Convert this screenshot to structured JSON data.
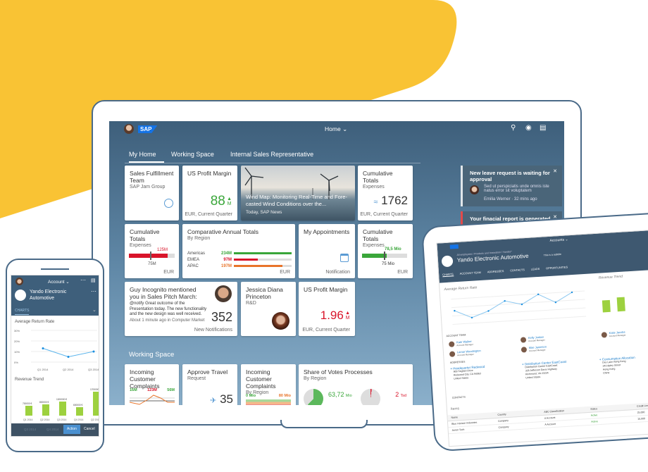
{
  "colors": {
    "brand_yellow": "#f9c334",
    "shell": "#3e5f7b",
    "positive": "#3aa63a",
    "negative": "#d9142a",
    "critical": "#e8742a",
    "accent": "#1a7cc9"
  },
  "shell": {
    "logo": "SAP",
    "title": "Home",
    "icons": [
      "search-icon",
      "copilot-icon",
      "notifications-icon"
    ]
  },
  "tabs": [
    {
      "label": "My Home",
      "active": true
    },
    {
      "label": "Working Space"
    },
    {
      "label": "Internal Sales Representative"
    }
  ],
  "tiles": {
    "sales_team": {
      "title": "Sales Fulfillment Team",
      "subtitle": "SAP Jam Group",
      "icon": "jam-icon"
    },
    "profit1": {
      "title": "US Profit Margin",
      "value": "88",
      "scale": "M",
      "footer": "EUR, Current Quarter",
      "trend": "up"
    },
    "news": {
      "title": "Wind Map: Monitoring Real-Time and Fore-casted Wind Conditions over the...",
      "footer": "Today, SAP News"
    },
    "cum1": {
      "title": "Cumulative Totals",
      "subtitle": "Expenses",
      "value": "1762",
      "footer": "EUR, Current Quarter",
      "icon": "trend-icon"
    },
    "cum2": {
      "title": "Cumulative Totals",
      "subtitle": "Expenses",
      "actual": "125M",
      "target": "75M",
      "footer": "EUR",
      "progress": 0.85
    },
    "comparative": {
      "title": "Comparative Annual Totals",
      "subtitle": "By Region",
      "footer": "EUR",
      "rows": [
        {
          "label": "Americas",
          "value": "234M",
          "fraction": 1.0,
          "color": "#3aa63a"
        },
        {
          "label": "EMEA",
          "value": "97M",
          "fraction": 0.41,
          "color": "#d9142a"
        },
        {
          "label": "APAC",
          "value": "197M",
          "fraction": 0.84,
          "color": "#e8742a"
        }
      ]
    },
    "appointments": {
      "title": "My Appointments",
      "footer": "Notification",
      "icon": "calendar-icon"
    },
    "cum3": {
      "title": "Cumulative Totals",
      "subtitle": "Expenses",
      "actual": "78,5 Mio",
      "target": "75 Mio",
      "footer": "EUR",
      "progress": 0.55
    },
    "mention": {
      "title": "Guy Incognito mentioned you in Sales Pitch March:",
      "text": "@notify Great outcome of the Presentation today. The new functionality and the new design was well received.",
      "meta": "About 1 minute ago in Computer Market",
      "value": "352",
      "footer": "New Notifications"
    },
    "contact": {
      "title": "Jessica Diana Princeton",
      "subtitle": "R&D"
    },
    "profit2": {
      "title": "US Profit Margin",
      "value": "1.96",
      "scale": "M",
      "footer": "EUR, Current Quarter",
      "trend": "up"
    }
  },
  "working_space": {
    "heading": "Working Space",
    "complaints1": {
      "title": "Incoming Customer Complaints",
      "labels": [
        "16M",
        "123M",
        "56M"
      ]
    },
    "travel": {
      "title": "Approve Travel",
      "subtitle": "Request",
      "value": "35",
      "icon": "airplane-icon"
    },
    "complaints2": {
      "title": "Incoming Customer Complaints",
      "subtitle": "By Region",
      "min": "0 Mio",
      "max": "80 Mio"
    },
    "votes": {
      "title": "Share of Votes Processes",
      "subtitle": "By Region",
      "value1": "63,72",
      "unit1": "Mio",
      "value2": "2",
      "unit2": "Tsd",
      "fraction1": 0.62
    }
  },
  "notifications": [
    {
      "title": "New leave request is waiting for approval",
      "text": "Sed ut perspiciatis unde omnis iste natus error sit voluptatem",
      "author": "Emilia Werner",
      "time": "32 mins ago"
    },
    {
      "title": "Your finacial report is generated successfully",
      "accent": "#e34a4a"
    }
  ],
  "phone": {
    "header": "Account",
    "company": "Yando Electronic Automotive",
    "section": "CHARTS",
    "chart1": {
      "title": "Average Return Rate",
      "yticks": [
        "30%",
        "20%",
        "10%",
        "0%"
      ],
      "x": [
        "Q1 2014",
        "Q2 2014",
        "Q3 2014"
      ],
      "values": [
        13,
        5,
        10
      ]
    },
    "chart2": {
      "title": "Revenue Trend",
      "x": [
        "Q1 2014",
        "Q2 2014",
        "Q3 2014",
        "Q4 2014",
        "Q2 2015"
      ],
      "values": [
        700000,
        800000,
        1000000,
        600000,
        1700000
      ],
      "labels": [
        "700000 €",
        "800000 €",
        "1000000 €",
        "600000 €",
        "1700000 €"
      ]
    },
    "footer": {
      "ghost": [
        "Q3 2014",
        "Q4 2014"
      ],
      "action": "Action",
      "cancel": "Cancel"
    }
  },
  "tablet": {
    "header": "Accounts",
    "breadcrumb": "All employees / Products and Innovation / Yandos*",
    "company": "Yando Electronic Automotive",
    "note": "This is a subtitle",
    "tabs": [
      "CHARTS",
      "ACCOUNT TEAM",
      "ADDRESSES",
      "CONTACTS",
      "LEADS",
      "OPPORTUNITIES"
    ],
    "chart1": {
      "title": "Average Return Rate",
      "values": [
        12,
        5,
        10,
        18,
        14,
        22,
        14,
        22
      ]
    },
    "chart2": {
      "title": "Revenue Trend"
    },
    "team_heading": "ACCOUNT TEAM",
    "team": [
      {
        "name": "Kate Walker",
        "role": "Account Manager"
      },
      {
        "name": "Kelly Jordan",
        "role": "Account Manager"
      },
      {
        "name": "Katie Jacobs",
        "role": "Account Manager"
      },
      {
        "name": "Lamar Woodington",
        "role": "Account Manager"
      },
      {
        "name": "Mae Jameson",
        "role": "Account Manager"
      }
    ],
    "addresses_heading": "ADDRESSES",
    "addresses": [
      {
        "name": "Headquarter Redwood",
        "lines": [
          "900 Seghan Drive",
          "Redwood City, CA 94063",
          "United States"
        ]
      },
      {
        "name": "Distribution Center EastCoast",
        "lines": [
          "Distribution Center EastCoast",
          "326 Jefferson Davis Highway",
          "Richmond, VA 23234",
          "United States"
        ]
      },
      {
        "name": "Consumption Allocation",
        "lines": [
          "Des Lake Hong Kong",
          "243 Apley Street",
          "Hong Kong",
          "China"
        ]
      }
    ],
    "contacts_heading": "CONTACTS",
    "items_heading": "Items",
    "columns": [
      "Name",
      "Country",
      "ABC Classification",
      "Status",
      "Credit Limit (USD)"
    ],
    "rows": [
      [
        "Blue Horizon Industries",
        "Company",
        "A Account",
        "Active",
        "25,000"
      ],
      [
        "Aeron Tech",
        "Company",
        "A Account",
        "Active",
        "15,000"
      ]
    ]
  }
}
